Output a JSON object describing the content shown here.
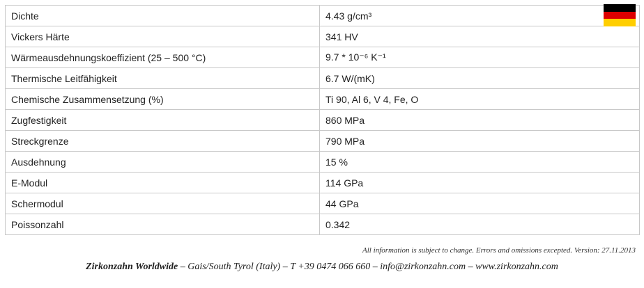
{
  "table": {
    "rows": [
      [
        "Dichte",
        "4.43 g/cm³"
      ],
      [
        "Vickers Härte",
        "341 HV"
      ],
      [
        "Wärmeausdehnungskoeffizient (25 – 500 °C)",
        "9.7 * 10⁻⁶ K⁻¹"
      ],
      [
        "Thermische Leitfähigkeit",
        "6.7 W/(mK)"
      ],
      [
        "Chemische Zusammensetzung (%)",
        "Ti 90, Al 6, V 4, Fe, O"
      ],
      [
        "Zugfestigkeit",
        "860 MPa"
      ],
      [
        "Streckgrenze",
        "790 MPa"
      ],
      [
        "Ausdehnung",
        "15 %"
      ],
      [
        "E-Modul",
        "114 GPa"
      ],
      [
        "Schermodul",
        "44 GPa"
      ],
      [
        "Poissonzahl",
        "0.342"
      ]
    ]
  },
  "footer": {
    "disclaimer": "All information is subject to change. Errors and omissions excepted. Version: 27.11.2013",
    "company": "Zirkonzahn Worldwide",
    "contact": "– Gais/South Tyrol (Italy) – T +39 0474 066 660 – info@zirkonzahn.com – www.zirkonzahn.com"
  }
}
